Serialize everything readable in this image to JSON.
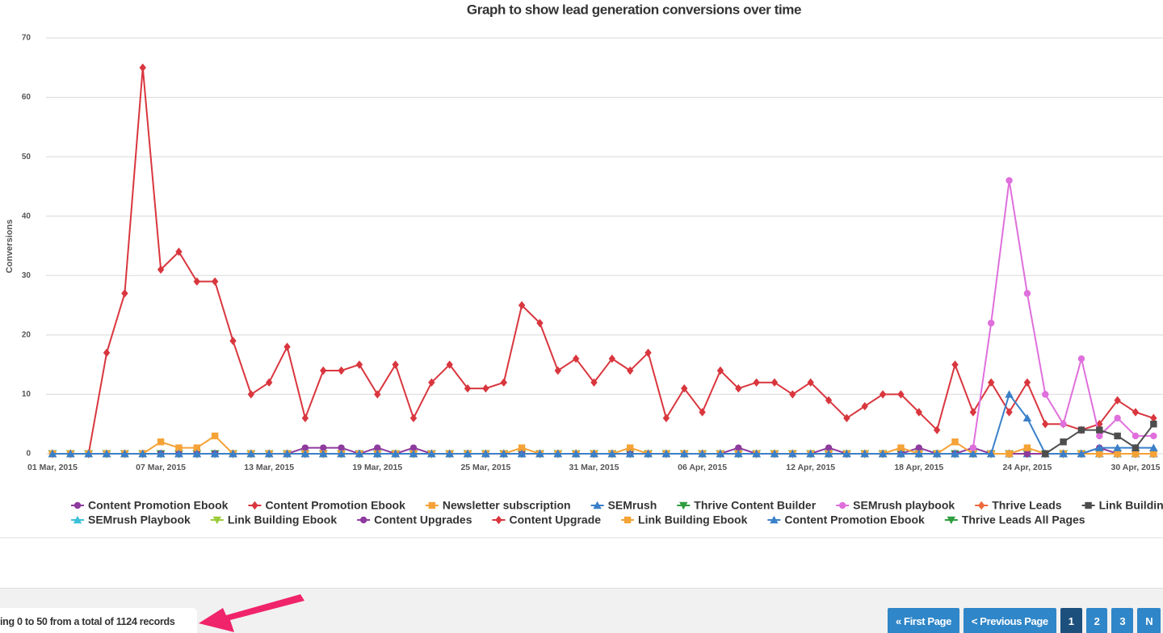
{
  "chart_data": {
    "type": "line",
    "title": "Graph to show lead generation conversions over time",
    "y_label": "Conversions",
    "categories": [
      "01 Mar, 2015",
      null,
      null,
      null,
      null,
      null,
      "07 Mar, 2015",
      null,
      null,
      null,
      null,
      null,
      "13 Mar, 2015",
      null,
      null,
      null,
      null,
      null,
      "19 Mar, 2015",
      null,
      null,
      null,
      null,
      null,
      "25 Mar, 2015",
      null,
      null,
      null,
      null,
      null,
      "31 Mar, 2015",
      null,
      null,
      null,
      null,
      null,
      "06 Apr, 2015",
      null,
      null,
      null,
      null,
      null,
      "12 Apr, 2015",
      null,
      null,
      null,
      null,
      null,
      "18 Apr, 2015",
      null,
      null,
      null,
      null,
      null,
      "24 Apr, 2015",
      null,
      null,
      null,
      null,
      null,
      "30 Apr, 2015",
      null
    ],
    "ylim": [
      0,
      70
    ],
    "yticks": [
      0,
      10,
      20,
      30,
      40,
      50,
      60,
      70
    ],
    "grid": true,
    "series": [
      {
        "name": "Content Promotion Ebook",
        "color": "#8e3a9e",
        "marker": "circle",
        "values": [
          0,
          0,
          0,
          0,
          0,
          0,
          0,
          0,
          0,
          0,
          0,
          0,
          0,
          0,
          1,
          1,
          1,
          0,
          1,
          0,
          1,
          0,
          0,
          0,
          0,
          0,
          0,
          0,
          0,
          0,
          0,
          0,
          0,
          0,
          0,
          0,
          0,
          0,
          1,
          0,
          0,
          0,
          0,
          1,
          0,
          0,
          0,
          0,
          1,
          0,
          0,
          1,
          0,
          0,
          0,
          0,
          0,
          0,
          1,
          0,
          0,
          0
        ]
      },
      {
        "name": "Content Promotion Ebook",
        "color": "#d9363e",
        "marker": "diamond",
        "values": [
          0,
          0,
          0,
          17,
          27,
          65,
          31,
          34,
          29,
          29,
          19,
          10,
          12,
          18,
          6,
          14,
          14,
          15,
          10,
          15,
          6,
          12,
          15,
          11,
          11,
          12,
          25,
          22,
          14,
          16,
          12,
          16,
          14,
          17,
          6,
          11,
          7,
          14,
          11,
          12,
          12,
          10,
          12,
          9,
          6,
          8,
          10,
          10,
          7,
          4,
          15,
          7,
          12,
          7,
          12,
          5,
          5,
          4,
          5,
          9,
          7,
          6
        ]
      },
      {
        "name": "Newsletter subscription",
        "color": "#f5a236",
        "marker": "square",
        "values": [
          0,
          0,
          0,
          0,
          0,
          0,
          2,
          1,
          1,
          3,
          0,
          0,
          0,
          0,
          0,
          0,
          0,
          0,
          0,
          0,
          0,
          0,
          0,
          0,
          0,
          0,
          1,
          0,
          0,
          0,
          0,
          0,
          1,
          0,
          0,
          0,
          0,
          0,
          0,
          0,
          0,
          0,
          0,
          0,
          0,
          0,
          0,
          1,
          0,
          0,
          2,
          0,
          0,
          0,
          1,
          0,
          0,
          0,
          0,
          0,
          0,
          0
        ]
      },
      {
        "name": "SEMrush",
        "color": "#3a80c9",
        "marker": "triangle",
        "values": [
          0,
          0,
          0,
          0,
          0,
          0,
          0,
          0,
          0,
          0,
          0,
          0,
          0,
          0,
          0,
          0,
          0,
          0,
          0,
          0,
          0,
          0,
          0,
          0,
          0,
          0,
          0,
          0,
          0,
          0,
          0,
          0,
          0,
          0,
          0,
          0,
          0,
          0,
          0,
          0,
          0,
          0,
          0,
          0,
          0,
          0,
          0,
          0,
          0,
          0,
          0,
          0,
          0,
          10,
          6,
          0,
          0,
          0,
          1,
          1,
          1,
          1
        ]
      },
      {
        "name": "Thrive Content Builder",
        "color": "#2e9e3e",
        "marker": "triangle-down",
        "values": [
          0,
          0,
          0,
          0,
          0,
          0,
          0,
          0,
          0,
          0,
          0,
          0,
          0,
          0,
          0,
          0,
          0,
          0,
          0,
          0,
          0,
          0,
          0,
          0,
          0,
          0,
          0,
          0,
          0,
          0,
          0,
          0,
          0,
          0,
          0,
          0,
          0,
          0,
          0,
          0,
          0,
          0,
          0,
          0,
          0,
          0,
          0,
          0,
          0,
          0,
          0,
          0,
          0,
          0,
          0,
          0,
          0,
          0,
          0,
          0,
          0,
          0
        ]
      },
      {
        "name": "SEMrush playbook",
        "color": "#df6fdc",
        "marker": "circle",
        "values": [
          null,
          null,
          null,
          null,
          null,
          null,
          null,
          null,
          null,
          null,
          null,
          null,
          null,
          null,
          null,
          null,
          null,
          null,
          null,
          null,
          null,
          null,
          null,
          null,
          null,
          null,
          null,
          null,
          null,
          null,
          null,
          null,
          null,
          null,
          null,
          null,
          null,
          null,
          null,
          null,
          null,
          null,
          null,
          null,
          null,
          null,
          null,
          null,
          null,
          null,
          null,
          1,
          22,
          46,
          27,
          10,
          5,
          16,
          3,
          6,
          3,
          3
        ]
      },
      {
        "name": "Thrive Leads",
        "color": "#ee6a3c",
        "marker": "diamond",
        "values": [
          0,
          0,
          0,
          0,
          0,
          0,
          0,
          0,
          0,
          0,
          0,
          0,
          0,
          0,
          0,
          0,
          0,
          0,
          0,
          0,
          0,
          0,
          0,
          0,
          0,
          0,
          0,
          0,
          0,
          0,
          0,
          0,
          0,
          0,
          0,
          0,
          0,
          0,
          0,
          0,
          0,
          0,
          0,
          0,
          0,
          0,
          0,
          0,
          0,
          0,
          0,
          0,
          0,
          0,
          0,
          0,
          0,
          0,
          0,
          0,
          0,
          0
        ]
      },
      {
        "name": "Link Building",
        "color": "#4d4d4d",
        "marker": "square",
        "values": [
          null,
          null,
          null,
          null,
          null,
          null,
          null,
          null,
          null,
          null,
          null,
          null,
          null,
          null,
          null,
          null,
          null,
          null,
          null,
          null,
          null,
          null,
          null,
          null,
          null,
          null,
          null,
          null,
          null,
          null,
          null,
          null,
          null,
          null,
          null,
          null,
          null,
          null,
          null,
          null,
          null,
          null,
          null,
          null,
          null,
          null,
          null,
          null,
          null,
          null,
          null,
          null,
          null,
          null,
          null,
          0,
          2,
          4,
          4,
          3,
          1,
          5
        ]
      },
      {
        "name": "SEMrush Playbook",
        "color": "#3bc0d8",
        "marker": "triangle",
        "values": [
          0,
          0,
          0,
          0,
          0,
          0,
          0,
          0,
          0,
          0,
          0,
          0,
          0,
          0,
          0,
          0,
          0,
          0,
          0,
          0,
          0,
          0,
          0,
          0,
          0,
          0,
          0,
          0,
          0,
          0,
          0,
          0,
          0,
          0,
          0,
          0,
          0,
          0,
          0,
          0,
          0,
          0,
          0,
          0,
          0,
          0,
          0,
          0,
          0,
          0,
          0,
          0,
          0,
          0,
          0,
          0,
          0,
          0,
          0,
          0,
          0,
          0
        ]
      },
      {
        "name": "Link Building Ebook",
        "color": "#9ccc3c",
        "marker": "triangle-down",
        "values": [
          0,
          0,
          0,
          0,
          0,
          0,
          0,
          0,
          0,
          0,
          0,
          0,
          0,
          0,
          0,
          0,
          0,
          0,
          0,
          0,
          0,
          0,
          0,
          0,
          0,
          0,
          0,
          0,
          0,
          0,
          0,
          0,
          0,
          0,
          0,
          0,
          0,
          0,
          0,
          0,
          0,
          0,
          0,
          0,
          0,
          0,
          0,
          0,
          0,
          0,
          0,
          0,
          0,
          0,
          0,
          0,
          0,
          0,
          0,
          0,
          0,
          0
        ]
      },
      {
        "name": "Content Upgrades",
        "color": "#8e3a9e",
        "marker": "circle",
        "values": [
          0,
          0,
          0,
          0,
          0,
          0,
          0,
          0,
          0,
          0,
          0,
          0,
          0,
          0,
          0,
          0,
          0,
          0,
          0,
          0,
          0,
          0,
          0,
          0,
          0,
          0,
          0,
          0,
          0,
          0,
          0,
          0,
          0,
          0,
          0,
          0,
          0,
          0,
          0,
          0,
          0,
          0,
          0,
          0,
          0,
          0,
          0,
          0,
          0,
          0,
          0,
          0,
          0,
          0,
          0,
          0,
          0,
          0,
          0,
          0,
          0,
          0
        ]
      },
      {
        "name": "Content Upgrade",
        "color": "#d9363e",
        "marker": "diamond",
        "values": [
          0,
          0,
          0,
          0,
          0,
          0,
          0,
          0,
          0,
          0,
          0,
          0,
          0,
          0,
          0,
          0,
          0,
          0,
          0,
          0,
          0,
          0,
          0,
          0,
          0,
          0,
          0,
          0,
          0,
          0,
          0,
          0,
          0,
          0,
          0,
          0,
          0,
          0,
          0,
          0,
          0,
          0,
          0,
          0,
          0,
          0,
          0,
          0,
          0,
          0,
          0,
          0,
          0,
          0,
          0,
          0,
          0,
          0,
          0,
          0,
          0,
          0
        ]
      },
      {
        "name": "Link Building Ebook",
        "color": "#f5a236",
        "marker": "square",
        "values": [
          0,
          0,
          0,
          0,
          0,
          0,
          0,
          0,
          0,
          0,
          0,
          0,
          0,
          0,
          0,
          0,
          0,
          0,
          0,
          0,
          0,
          0,
          0,
          0,
          0,
          0,
          0,
          0,
          0,
          0,
          0,
          0,
          0,
          0,
          0,
          0,
          0,
          0,
          0,
          0,
          0,
          0,
          0,
          0,
          0,
          0,
          0,
          0,
          0,
          0,
          0,
          0,
          0,
          0,
          0,
          0,
          0,
          0,
          0,
          0,
          0,
          0
        ]
      },
      {
        "name": "Content Promotion Ebook",
        "color": "#3a80c9",
        "marker": "triangle",
        "values": [
          0,
          0,
          0,
          0,
          0,
          0,
          0,
          0,
          0,
          0,
          0,
          0,
          0,
          0,
          0,
          0,
          0,
          0,
          0,
          0,
          0,
          0,
          0,
          0,
          0,
          0,
          0,
          0,
          0,
          0,
          0,
          0,
          0,
          0,
          0,
          0,
          0,
          0,
          0,
          0,
          0,
          0,
          0,
          0,
          0,
          0,
          0,
          0,
          0,
          0,
          0,
          0,
          0,
          0,
          0,
          0,
          0,
          0,
          0,
          0,
          0,
          0
        ]
      },
      {
        "name": "Thrive Leads All Pages",
        "color": "#2e9e3e",
        "marker": "triangle-down",
        "values": [
          0,
          0,
          0,
          0,
          0,
          0,
          0,
          0,
          0,
          0,
          0,
          0,
          0,
          0,
          0,
          0,
          0,
          0,
          0,
          0,
          0,
          0,
          0,
          0,
          0,
          0,
          0,
          0,
          0,
          0,
          0,
          0,
          0,
          0,
          0,
          0,
          0,
          0,
          0,
          0,
          0,
          0,
          0,
          0,
          0,
          0,
          0,
          0,
          0,
          0,
          0,
          0,
          0,
          0,
          0,
          0,
          0,
          0,
          0,
          0,
          0,
          0
        ]
      }
    ],
    "legend_rows": [
      8,
      7
    ]
  },
  "footer": {
    "records_text": "ing 0 to 50 from a total of 1124 records",
    "pagination": [
      "« First Page",
      "< Previous Page",
      "1",
      "2",
      "3",
      "N"
    ],
    "active_page": 2
  }
}
